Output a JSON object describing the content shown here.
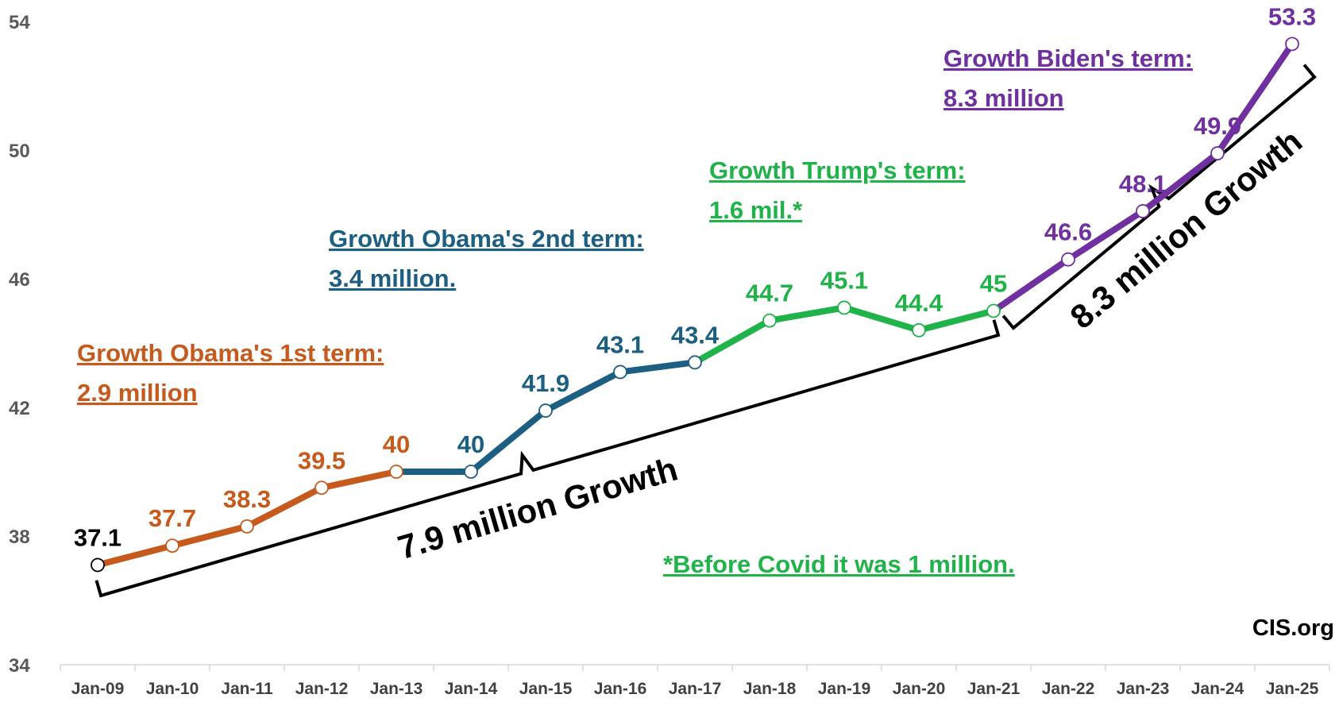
{
  "chart_data": {
    "type": "line",
    "ylim": [
      34,
      54
    ],
    "yticks": [
      34,
      38,
      42,
      46,
      50,
      54
    ],
    "grid": false,
    "categories": [
      "Jan-09",
      "Jan-10",
      "Jan-11",
      "Jan-12",
      "Jan-13",
      "Jan-14",
      "Jan-15",
      "Jan-16",
      "Jan-17",
      "Jan-18",
      "Jan-19",
      "Jan-20",
      "Jan-21",
      "Jan-22",
      "Jan-23",
      "Jan-24",
      "Jan-25"
    ],
    "values": [
      37.1,
      37.7,
      38.3,
      39.5,
      40,
      40,
      41.9,
      43.1,
      43.4,
      44.7,
      45.1,
      44.4,
      45,
      46.6,
      48.1,
      49.9,
      53.3
    ],
    "data_labels": [
      "37.1",
      "37.7",
      "38.3",
      "39.5",
      "40",
      "40",
      "41.9",
      "43.1",
      "43.4",
      "44.7",
      "45.1",
      "44.4",
      "45",
      "46.6",
      "48.1",
      "49.9",
      "53.3"
    ],
    "label_colors": [
      "#000000",
      "#C55A1C",
      "#C55A1C",
      "#C55A1C",
      "#C55A1C",
      "#1C5F82",
      "#1C5F82",
      "#1C5F82",
      "#1C5F82",
      "#1FB34A",
      "#1FB34A",
      "#1FB34A",
      "#1FB34A",
      "#7030A0",
      "#7030A0",
      "#7030A0",
      "#7030A0"
    ],
    "segments": [
      {
        "from": 0,
        "to": 4,
        "color": "#C55A1C"
      },
      {
        "from": 4,
        "to": 8,
        "color": "#1C5F82"
      },
      {
        "from": 8,
        "to": 12,
        "color": "#1FB34A"
      },
      {
        "from": 12,
        "to": 16,
        "color": "#7030A0"
      }
    ],
    "annotations": [
      {
        "lines": [
          "Growth Obama's 1st term:",
          "2.9 million"
        ],
        "color": "#C55A1C"
      },
      {
        "lines": [
          "Growth Obama's 2nd term:",
          "3.4 million."
        ],
        "color": "#1C5F82"
      },
      {
        "lines": [
          "Growth Trump's term:",
          "1.6 mil.*"
        ],
        "color": "#1FB34A"
      },
      {
        "lines": [
          "Growth Biden's term:",
          "8.3 million"
        ],
        "color": "#7030A0"
      }
    ],
    "footnote": {
      "text": "*Before Covid it was 1 million.",
      "color": "#1FB34A"
    },
    "brackets": [
      {
        "label": "7.9 million Growth"
      },
      {
        "label": "8.3 million Growth"
      }
    ],
    "source": "CIS.org"
  }
}
